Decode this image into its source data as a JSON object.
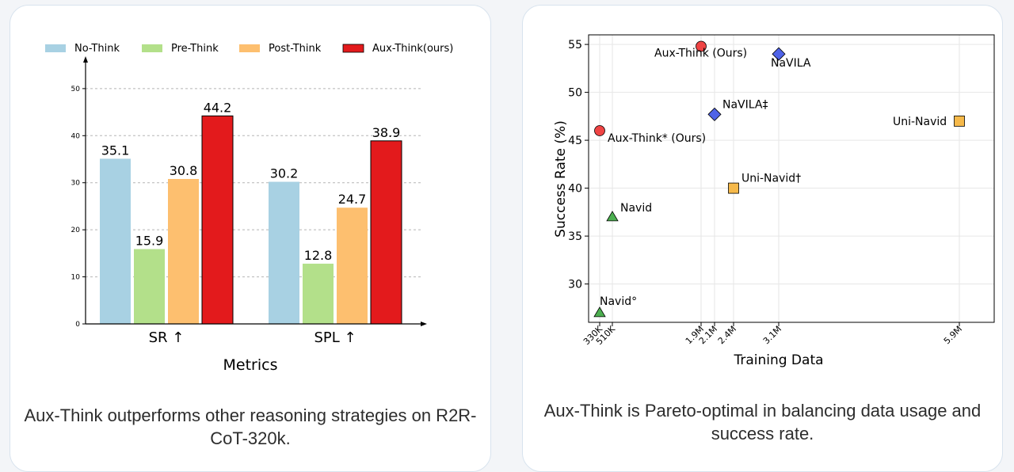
{
  "colors": {
    "No-Think": "#a8d1e3",
    "Pre-Think": "#b3e08a",
    "Post-Think": "#fdbf6f",
    "Aux-Think(ours)": "#e31a1c",
    "aux": "#ef4444",
    "navila": "#4f63e8",
    "navid": "#4caf50",
    "uninavid": "#f6b94a"
  },
  "left": {
    "caption": "Aux-Think outperforms other reasoning strategies on R2R-CoT-320k."
  },
  "right": {
    "caption": "Aux-Think is Pareto-optimal in balancing data usage and success rate."
  },
  "chart_data": [
    {
      "type": "bar",
      "title": "",
      "xlabel": "Metrics",
      "ylabel": "",
      "categories": [
        "SR ↑",
        "SPL ↑"
      ],
      "series": [
        {
          "name": "No-Think",
          "values": [
            35.1,
            30.2
          ]
        },
        {
          "name": "Pre-Think",
          "values": [
            15.9,
            12.8
          ]
        },
        {
          "name": "Post-Think",
          "values": [
            30.8,
            24.7
          ]
        },
        {
          "name": "Aux-Think(ours)",
          "values": [
            44.2,
            38.9
          ]
        }
      ],
      "ylim": [
        0,
        52
      ],
      "yticks": [
        0,
        10,
        20,
        30,
        40,
        50
      ],
      "grid": "y-dashed",
      "legend": "top"
    },
    {
      "type": "scatter",
      "title": "",
      "xlabel": "Training Data",
      "ylabel": "Success Rate (%)",
      "ylim": [
        26,
        56
      ],
      "yticks": [
        30,
        35,
        40,
        45,
        50,
        55
      ],
      "xticks": [
        "330K",
        "510K",
        "1.9M",
        "2.1M",
        "2.4M",
        "3.1M",
        "5.9M"
      ],
      "grid": "both",
      "points": [
        {
          "label": "Aux-Think (Ours)",
          "x": "1.9M",
          "y": 54.8,
          "marker": "circle",
          "group": "aux"
        },
        {
          "label": "NaVILA",
          "x": "3.1M",
          "y": 54.0,
          "marker": "diamond",
          "group": "navila"
        },
        {
          "label": "NaVILA‡",
          "x": "2.1M",
          "y": 47.7,
          "marker": "diamond",
          "group": "navila"
        },
        {
          "label": "Uni-Navid",
          "x": "5.9M",
          "y": 47.0,
          "marker": "square",
          "group": "uninavid"
        },
        {
          "label": "Aux-Think* (Ours)",
          "x": "330K",
          "y": 46.0,
          "marker": "circle",
          "group": "aux"
        },
        {
          "label": "Uni-Navid†",
          "x": "2.4M",
          "y": 40.0,
          "marker": "square",
          "group": "uninavid"
        },
        {
          "label": "Navid",
          "x": "510K",
          "y": 37.0,
          "marker": "triangle",
          "group": "navid"
        },
        {
          "label": "Navid°",
          "x": "330K",
          "y": 27.0,
          "marker": "triangle",
          "group": "navid"
        }
      ]
    }
  ]
}
